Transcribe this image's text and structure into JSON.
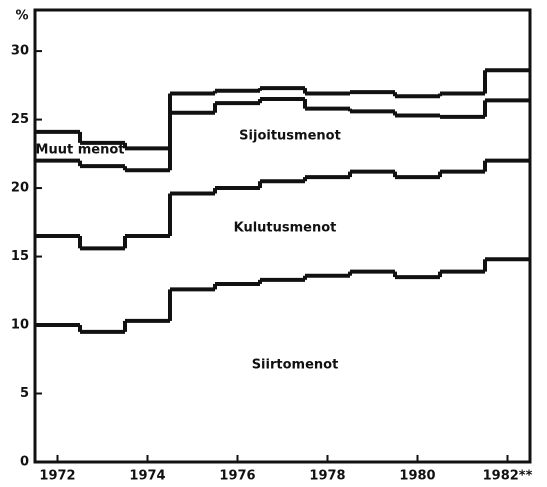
{
  "chart_data": {
    "type": "stepstack",
    "y_label": "%",
    "x": [
      1972,
      1973,
      1974,
      1975,
      1976,
      1977,
      1978,
      1979,
      1980,
      1981,
      1982
    ],
    "xlim": [
      1971.5,
      1982.5
    ],
    "xticks": [
      1972,
      1974,
      1976,
      1978,
      1980,
      {
        "value": 1982,
        "label": "1982**"
      }
    ],
    "ylim": [
      0,
      33
    ],
    "yticks": [
      0,
      5,
      10,
      15,
      20,
      25,
      30
    ],
    "series": [
      {
        "name": "Siirtomenot",
        "color": "#111111",
        "values": [
          10.0,
          9.5,
          10.3,
          12.6,
          13.0,
          13.3,
          13.6,
          13.9,
          13.5,
          13.9,
          14.8
        ]
      },
      {
        "name": "Kulutusmenot",
        "color": "#111111",
        "values": [
          6.5,
          6.1,
          6.2,
          7.0,
          7.0,
          7.2,
          7.2,
          7.3,
          7.3,
          7.3,
          7.2
        ]
      },
      {
        "name": "Sijoitusmenot",
        "color": "#111111",
        "values": [
          5.5,
          6.0,
          4.8,
          5.9,
          6.2,
          6.0,
          5.0,
          4.4,
          4.5,
          4.0,
          4.4
        ]
      },
      {
        "name": "Muut menot",
        "color": "#111111",
        "values": [
          2.1,
          1.7,
          1.6,
          1.4,
          0.9,
          0.8,
          1.1,
          1.4,
          1.4,
          1.7,
          2.2
        ]
      }
    ]
  }
}
